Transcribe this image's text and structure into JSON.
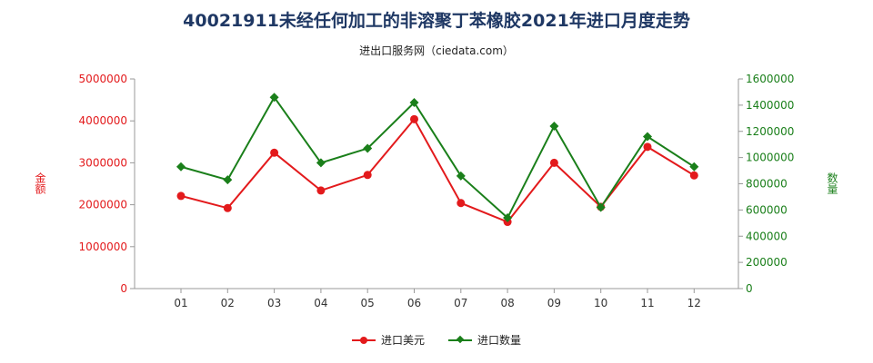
{
  "title": "40021911未经任何加工的非溶聚丁苯橡胶2021年进口月度走势",
  "subtitle": "进出口服务网（ciedata.com）",
  "colors": {
    "series1": "#e31a1c",
    "series2": "#1a7f1a",
    "title": "#1f3864"
  },
  "chart_data": {
    "type": "line",
    "categories": [
      "01",
      "02",
      "03",
      "04",
      "05",
      "06",
      "07",
      "08",
      "09",
      "10",
      "11",
      "12"
    ],
    "series": [
      {
        "name": "进口美元",
        "axis": "left",
        "values": [
          2210000,
          1920000,
          3240000,
          2340000,
          2710000,
          4040000,
          2040000,
          1590000,
          3000000,
          1950000,
          3380000,
          2700000
        ]
      },
      {
        "name": "进口数量",
        "axis": "right",
        "values": [
          930000,
          830000,
          1460000,
          960000,
          1070000,
          1420000,
          860000,
          540000,
          1240000,
          620000,
          1160000,
          930000
        ]
      }
    ],
    "y_left": {
      "label": "金额",
      "min": 0,
      "max": 5000000,
      "ticks": [
        "0",
        "1000000",
        "2000000",
        "3000000",
        "4000000",
        "5000000"
      ]
    },
    "y_right": {
      "label": "数量",
      "min": 0,
      "max": 1600000,
      "ticks": [
        "0",
        "200000",
        "400000",
        "600000",
        "800000",
        "1000000",
        "1200000",
        "1400000",
        "1600000"
      ]
    },
    "grid": false,
    "legend_position": "bottom"
  }
}
